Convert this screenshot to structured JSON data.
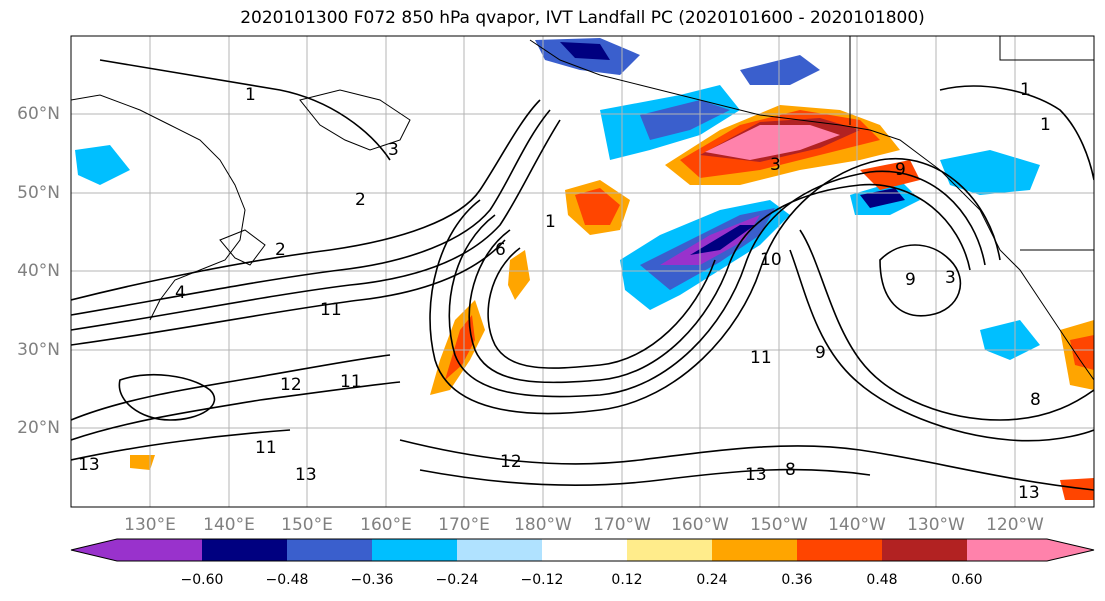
{
  "title": "2020101300 F072 850 hPa qvapor, IVT Landfall PC (2020101600 - 2020101800)",
  "latitude_labels": [
    "60°N",
    "50°N",
    "40°N",
    "30°N",
    "20°N"
  ],
  "longitude_labels": [
    "130°E",
    "140°E",
    "150°E",
    "160°E",
    "170°E",
    "180°W",
    "170°W",
    "160°W",
    "150°W",
    "140°W",
    "130°W",
    "120°W"
  ],
  "colorbar": {
    "colors": [
      "#9932cc",
      "#000080",
      "#3a5fcd",
      "#00bfff",
      "#b0e2ff",
      "#ffffff",
      "#ffec8b",
      "#ffa500",
      "#ff4500",
      "#b22222",
      "#ff82ab"
    ],
    "tick_labels": [
      "−0.60",
      "−0.48",
      "−0.36",
      "−0.24",
      "−0.12",
      "0.12",
      "0.24",
      "0.36",
      "0.48",
      "0.60"
    ]
  },
  "contour_labels": [
    "1",
    "1",
    "2",
    "2",
    "3",
    "3",
    "3",
    "6",
    "9",
    "9",
    "10",
    "11",
    "11",
    "11",
    "11",
    "12",
    "12",
    "13",
    "13",
    "13",
    "13",
    "4",
    "8",
    "8",
    "1",
    "1",
    "9"
  ]
}
